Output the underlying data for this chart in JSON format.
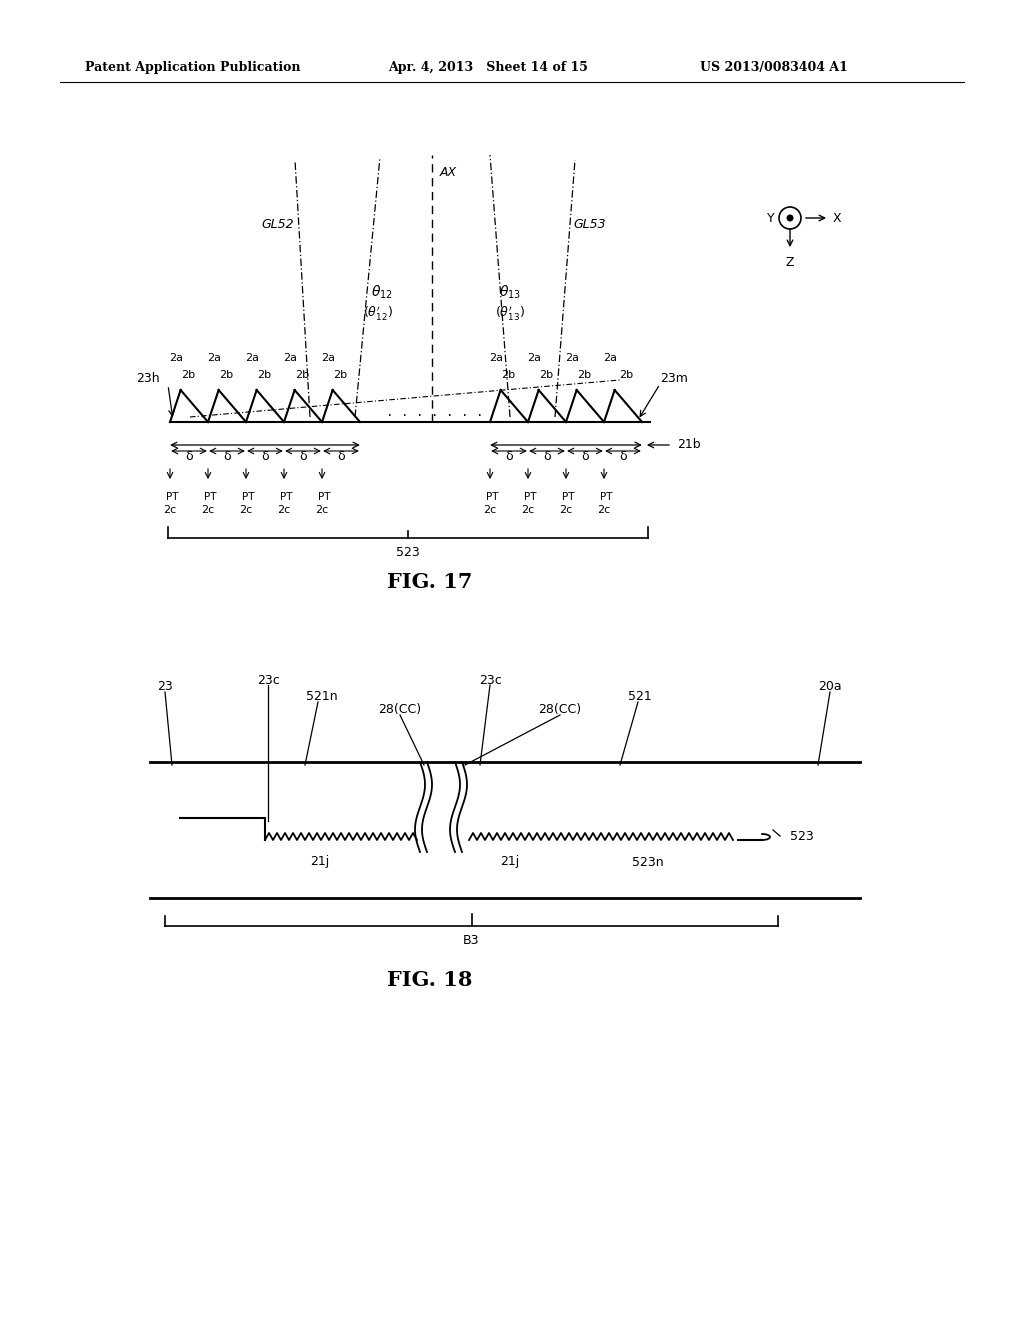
{
  "bg_color": "#ffffff",
  "text_color": "#000000",
  "header_left": "Patent Application Publication",
  "header_mid": "Apr. 4, 2013   Sheet 14 of 15",
  "header_right": "US 2013/0083404 A1",
  "fig17_label": "FIG. 17",
  "fig18_label": "FIG. 18"
}
